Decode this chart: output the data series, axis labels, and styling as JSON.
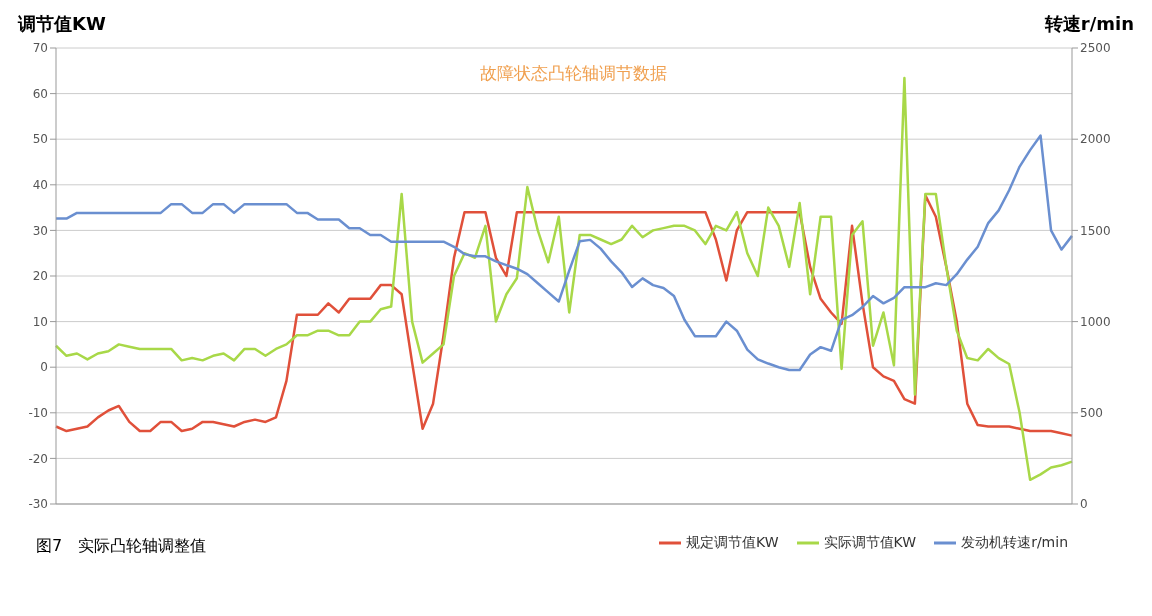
{
  "chart_data": {
    "type": "line",
    "title": "故障状态凸轮轴调节数据",
    "ylabel": "调节值KW",
    "y2label": "转速r/min",
    "annotations": [
      "图7　实际凸轮轴调整值"
    ],
    "categories": [
      null,
      null,
      null,
      null,
      null,
      null,
      null,
      null,
      null,
      null,
      null,
      null,
      null,
      null,
      null,
      null,
      null,
      null,
      null,
      null,
      null,
      null,
      null,
      null,
      null,
      null,
      null,
      null,
      null,
      null,
      null,
      null,
      null,
      null,
      null,
      null,
      null,
      null,
      null,
      null,
      null,
      null,
      null,
      null,
      null,
      null,
      null,
      null,
      null,
      null,
      null,
      null,
      null,
      null,
      null,
      null,
      null,
      null,
      null,
      null,
      null,
      null,
      null,
      null,
      null,
      null,
      null,
      null,
      null,
      null,
      null,
      null,
      null,
      null,
      null,
      null,
      null,
      null,
      null,
      null,
      null,
      null,
      null,
      null,
      null,
      null,
      null,
      null,
      null,
      null,
      null,
      null,
      null,
      null,
      null,
      null,
      null,
      null
    ],
    "series": [
      {
        "name": "规定调节值KW",
        "color": "#e0503a",
        "values": [
          -13,
          -14,
          -13.5,
          -13,
          -11,
          -9.5,
          -8.5,
          -12,
          -14,
          -14,
          -12,
          -12,
          -14,
          -13.5,
          -12,
          -12,
          -12.5,
          -13,
          -12,
          -11.5,
          -12,
          -11,
          -3,
          11.5,
          11.5,
          11.5,
          14,
          12,
          15,
          15,
          15,
          18,
          18,
          16,
          1,
          -13.5,
          -8,
          7,
          24,
          34,
          34,
          34,
          24,
          20,
          34,
          34,
          34,
          34,
          34,
          34,
          34,
          34,
          34,
          34,
          34,
          34,
          34,
          34,
          34,
          34,
          34,
          34,
          34,
          28,
          19,
          30,
          34,
          34,
          34,
          34,
          34,
          34,
          22,
          15,
          12,
          9.5,
          31,
          14,
          0,
          -2,
          -3,
          -7,
          -8,
          37.7,
          33,
          22,
          10,
          -8,
          -12.7,
          -13,
          -13,
          -13,
          -13.5,
          -14,
          -14,
          -14,
          -14.5,
          -15
        ]
      },
      {
        "name": "实际调节值KW",
        "color": "#a8d848",
        "values": [
          4.7,
          2.5,
          3,
          1.7,
          3,
          3.5,
          5,
          4.5,
          4,
          4,
          4,
          4,
          1.5,
          2,
          1.5,
          2.5,
          3,
          1.5,
          4,
          4,
          2.5,
          4,
          5,
          7,
          7,
          8,
          8,
          7,
          7,
          10,
          10,
          12.7,
          13.3,
          38,
          10,
          1,
          3,
          5,
          20,
          25,
          24,
          31,
          10,
          16,
          19.5,
          39.5,
          30,
          23,
          33,
          12,
          29,
          29,
          28,
          27,
          28,
          31,
          28.5,
          30,
          30.5,
          31,
          31,
          30,
          27,
          31,
          30,
          34,
          25,
          20,
          35,
          31,
          22,
          36,
          16,
          33,
          33,
          -0.4,
          29,
          32,
          4.7,
          12,
          0.4,
          63.4,
          -6,
          38,
          38,
          22,
          8,
          2,
          1.5,
          4,
          2,
          0.7,
          -10,
          -24.7,
          -23.5,
          -22,
          -21.5,
          -20.7
        ]
      },
      {
        "name": "发动机转速r/min",
        "color": "#6a8fd0",
        "axis": "y2",
        "values": [
          1565,
          1565,
          1596,
          1596,
          1596,
          1596,
          1596,
          1596,
          1596,
          1596,
          1596,
          1644,
          1644,
          1596,
          1596,
          1644,
          1644,
          1596,
          1644,
          1644,
          1644,
          1644,
          1644,
          1596,
          1596,
          1560,
          1560,
          1560,
          1512,
          1512,
          1475,
          1475,
          1438,
          1438,
          1438,
          1438,
          1438,
          1438,
          1410,
          1370,
          1358,
          1358,
          1330,
          1310,
          1290,
          1260,
          1210,
          1160,
          1110,
          1280,
          1440,
          1448,
          1400,
          1330,
          1270,
          1190,
          1237,
          1200,
          1184,
          1140,
          1010,
          920,
          920,
          920,
          1000,
          950,
          846,
          793,
          770,
          750,
          735,
          735,
          820,
          860,
          840,
          1010,
          1035,
          1080,
          1140,
          1100,
          1130,
          1189,
          1189,
          1189,
          1210,
          1200,
          1260,
          1340,
          1410,
          1540,
          1610,
          1720,
          1850,
          1940,
          2020,
          1500,
          1395,
          1470
        ]
      }
    ],
    "ylim": [
      -30,
      70
    ],
    "yticks": [
      -30,
      -20,
      -10,
      0,
      10,
      20,
      30,
      40,
      50,
      60,
      70
    ],
    "y2lim": [
      0,
      2500
    ],
    "y2ticks": [
      0,
      500,
      1000,
      1500,
      2000,
      2500
    ],
    "grid": "y",
    "legend": "bottom right"
  }
}
